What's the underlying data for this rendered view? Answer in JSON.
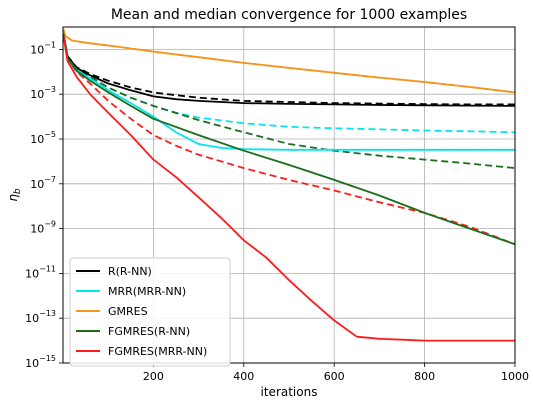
{
  "chart_data": {
    "type": "line",
    "title": "Mean and median convergence for 1000 examples",
    "xlabel": "iterations",
    "ylabel": "η",
    "ylabel_sub": "b",
    "xlim": [
      0,
      1000
    ],
    "ylim": [
      1e-15,
      1
    ],
    "yscale": "log",
    "grid": true,
    "legend_position": "lower-left",
    "x_ticks": [
      200,
      400,
      600,
      800,
      1000
    ],
    "y_ticks": [
      {
        "value": 0.1,
        "base": "10",
        "exp": "−1"
      },
      {
        "value": 0.001,
        "base": "10",
        "exp": "−3"
      },
      {
        "value": 1e-05,
        "base": "10",
        "exp": "−5"
      },
      {
        "value": 1e-07,
        "base": "10",
        "exp": "−7"
      },
      {
        "value": 1e-09,
        "base": "10",
        "exp": "−9"
      },
      {
        "value": 1e-11,
        "base": "10",
        "exp": "−11"
      },
      {
        "value": 1e-13,
        "base": "10",
        "exp": "−13"
      },
      {
        "value": 1e-15,
        "base": "10",
        "exp": "−15"
      }
    ],
    "series": [
      {
        "name": "R(R-NN)",
        "color": "#000000",
        "style": "solid",
        "x": [
          1,
          10,
          30,
          60,
          100,
          150,
          200,
          250,
          300,
          400,
          500,
          600,
          700,
          800,
          900,
          1000
        ],
        "y": [
          0.5,
          0.05,
          0.015,
          0.007,
          0.003,
          0.0015,
          0.0008,
          0.0006,
          0.0005,
          0.0004,
          0.00037,
          0.00035,
          0.00033,
          0.00032,
          0.00031,
          0.0003
        ]
      },
      {
        "name": "",
        "color": "#000000",
        "style": "dashed",
        "x": [
          1,
          10,
          30,
          60,
          100,
          150,
          200,
          250,
          300,
          400,
          500,
          600,
          700,
          800,
          900,
          1000
        ],
        "y": [
          0.5,
          0.05,
          0.016,
          0.008,
          0.004,
          0.002,
          0.0012,
          0.0009,
          0.0007,
          0.0005,
          0.00045,
          0.0004,
          0.00038,
          0.00036,
          0.00035,
          0.00035
        ]
      },
      {
        "name": "MRR(MRR-NN)",
        "color": "#00e5ee",
        "style": "solid",
        "x": [
          1,
          10,
          30,
          60,
          100,
          150,
          200,
          250,
          300,
          350,
          400,
          500,
          600,
          700,
          800,
          900,
          1000
        ],
        "y": [
          0.5,
          0.04,
          0.012,
          0.005,
          0.0015,
          0.0004,
          0.0001,
          2e-05,
          6e-06,
          4e-06,
          3.5e-06,
          3.3e-06,
          3.3e-06,
          3.3e-06,
          3.3e-06,
          3.3e-06,
          3.3e-06
        ]
      },
      {
        "name": "",
        "color": "#00e5ee",
        "style": "dashed",
        "x": [
          1,
          10,
          30,
          60,
          100,
          150,
          200,
          250,
          300,
          400,
          500,
          600,
          700,
          800,
          900,
          1000
        ],
        "y": [
          0.5,
          0.05,
          0.014,
          0.006,
          0.002,
          0.0007,
          0.0003,
          0.00015,
          9e-05,
          5e-05,
          3.5e-05,
          3e-05,
          2.7e-05,
          2.4e-05,
          2.2e-05,
          2e-05
        ]
      },
      {
        "name": "GMRES",
        "color": "#f2961e",
        "style": "solid",
        "x": [
          1,
          5,
          20,
          50,
          100,
          150,
          200,
          300,
          400,
          500,
          600,
          700,
          800,
          900,
          1000
        ],
        "y": [
          0.8,
          0.4,
          0.25,
          0.2,
          0.15,
          0.11,
          0.08,
          0.045,
          0.025,
          0.015,
          0.009,
          0.0055,
          0.0035,
          0.0021,
          0.0012
        ]
      },
      {
        "name": "",
        "color": "#f2961e",
        "style": "dashed",
        "x": [
          1,
          5,
          20,
          50,
          100,
          150,
          200,
          300,
          400,
          500,
          600,
          700,
          800,
          900,
          1000
        ],
        "y": [
          0.8,
          0.4,
          0.25,
          0.2,
          0.15,
          0.11,
          0.08,
          0.045,
          0.025,
          0.015,
          0.009,
          0.0055,
          0.0035,
          0.0021,
          0.0012
        ]
      },
      {
        "name": "FGMRES(R-NN)",
        "color": "#1a6e1a",
        "style": "solid",
        "x": [
          1,
          10,
          30,
          60,
          100,
          150,
          200,
          300,
          400,
          500,
          600,
          700,
          800,
          900,
          1000
        ],
        "y": [
          0.5,
          0.04,
          0.011,
          0.004,
          0.0012,
          0.0003,
          8e-05,
          1.5e-05,
          3e-06,
          7e-07,
          1.5e-07,
          3e-08,
          5e-09,
          1e-09,
          2e-10
        ]
      },
      {
        "name": "",
        "color": "#1a6e1a",
        "style": "dashed",
        "x": [
          1,
          10,
          30,
          60,
          100,
          150,
          200,
          300,
          400,
          500,
          600,
          700,
          800,
          900,
          1000
        ],
        "y": [
          0.5,
          0.05,
          0.014,
          0.006,
          0.002,
          0.0007,
          0.0003,
          7e-05,
          2e-05,
          6e-06,
          3e-06,
          1.8e-06,
          1.2e-06,
          8e-07,
          5e-07
        ]
      },
      {
        "name": "FGMRES(MRR-NN)",
        "color": "#ff1a1a",
        "style": "solid",
        "x": [
          1,
          10,
          30,
          60,
          100,
          150,
          200,
          250,
          300,
          350,
          400,
          450,
          500,
          550,
          600,
          650,
          700,
          750,
          800,
          900,
          1000
        ],
        "y": [
          0.4,
          0.03,
          0.006,
          0.001,
          0.00015,
          1.5e-05,
          1.2e-06,
          2e-07,
          2.5e-08,
          3e-09,
          3e-10,
          5e-11,
          5e-12,
          6e-13,
          8e-14,
          1.5e-14,
          1.2e-14,
          1.1e-14,
          1e-14,
          1e-14,
          1e-14
        ]
      },
      {
        "name": "",
        "color": "#ff1a1a",
        "style": "dashed",
        "x": [
          1,
          10,
          30,
          60,
          100,
          150,
          200,
          250,
          300,
          400,
          500,
          600,
          700,
          800,
          900,
          1000
        ],
        "y": [
          0.5,
          0.04,
          0.01,
          0.003,
          0.0005,
          8e-05,
          1.5e-05,
          5e-06,
          2e-06,
          5e-07,
          1.5e-07,
          5e-08,
          1.5e-08,
          5e-09,
          1.2e-09,
          2e-10
        ]
      }
    ]
  }
}
